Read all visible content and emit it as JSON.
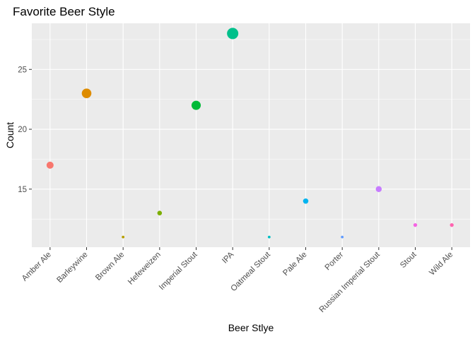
{
  "chart_data": {
    "type": "scatter",
    "title": "Favorite Beer Style",
    "xlabel": "Beer Stlye",
    "ylabel": "Count",
    "categories": [
      "Amber Ale",
      "Barleywine",
      "Brown Ale",
      "Hefeweizen",
      "Imperial Stout",
      "IPA",
      "Oatmeal Stout",
      "Pale Ale",
      "Porter",
      "Russian Imperial Stout",
      "Stout",
      "Wild Ale"
    ],
    "values": [
      17,
      23,
      11,
      13,
      22,
      28,
      11,
      14,
      11,
      15,
      12,
      12
    ],
    "colors": [
      "#F8766D",
      "#DE8C00",
      "#B79F00",
      "#7CAE00",
      "#00BA38",
      "#00C08B",
      "#00BFC4",
      "#00B4F0",
      "#619CFF",
      "#C77CFF",
      "#F564E3",
      "#FF64B0"
    ],
    "point_size_by": "value",
    "ylim": [
      10.15,
      28.85
    ],
    "yticks": [
      15,
      20,
      25
    ],
    "grid": true,
    "legend": "none",
    "background": "#EBEBEB"
  }
}
